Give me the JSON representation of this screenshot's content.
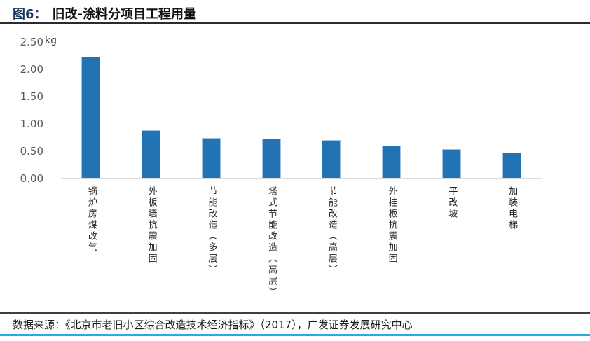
{
  "figure": {
    "label": "图6：",
    "title": "旧改-涂料分项目工程用量"
  },
  "chart_data": {
    "type": "bar",
    "title": "旧改-涂料分项目工程用量",
    "unit": "kg",
    "categories": [
      "锅炉房煤改气",
      "外板墙抗震加固",
      "节能改造（多层）",
      "塔式节能改造（高层）",
      "节能改造（高层）",
      "外挂板抗震加固",
      "平改坡",
      "加装电梯"
    ],
    "values": [
      2.23,
      0.88,
      0.75,
      0.73,
      0.71,
      0.6,
      0.54,
      0.48
    ],
    "yticks": [
      0.0,
      0.5,
      1.0,
      1.5,
      2.0,
      2.5
    ],
    "ylim": [
      0,
      2.5
    ],
    "grid": false,
    "legend": "none",
    "bar_color": "#2173B3",
    "bar_border_color": "#9DC3E6"
  },
  "footer": {
    "source": "数据来源：《北京市老旧小区综合改造技术经济指标》（2017），广发证券发展研究中心"
  },
  "colors": {
    "figure_label": "#17375E",
    "accent_line": "#29ABE2",
    "axis_text": "#595959"
  }
}
